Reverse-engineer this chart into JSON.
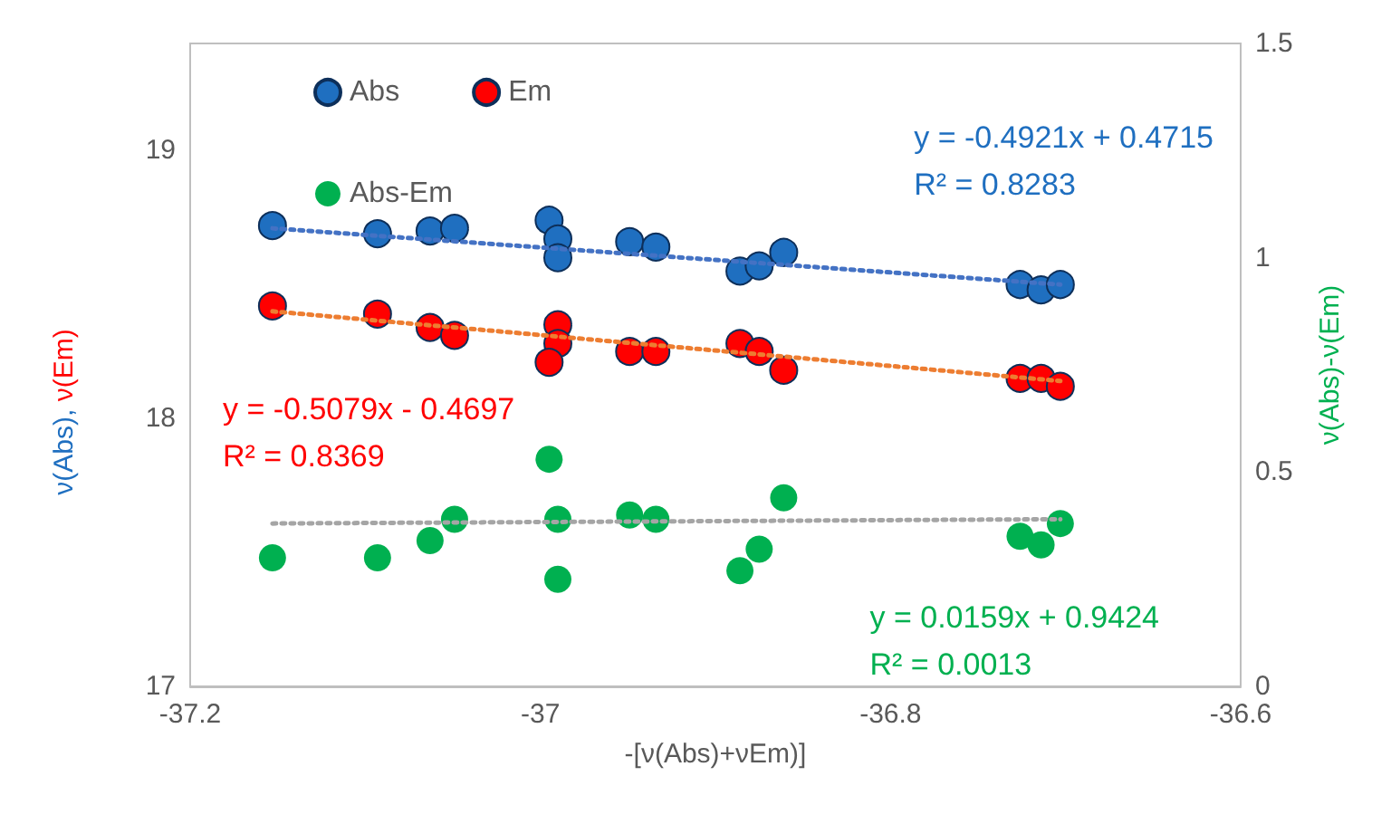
{
  "chart_data": {
    "type": "scatter",
    "xlabel": "-[ν(Abs)+νEm)]",
    "ylabel": "ν(Abs), ν(Em)",
    "y2label": "ν(Abs)-ν(Em)",
    "xlim": [
      -37.2,
      -36.6
    ],
    "xticks": [
      -37.2,
      -37,
      -36.8,
      -36.6
    ],
    "ylim": [
      17,
      19.4
    ],
    "yticks": [
      17,
      18,
      19
    ],
    "y2lim": [
      0,
      1.5
    ],
    "y2ticks": [
      0,
      0.5,
      1,
      1.5
    ],
    "grid": false,
    "legend": "top left",
    "marker": "circle",
    "series": [
      {
        "name": "Abs",
        "color": "#1f6fc0",
        "x": [
          -37.153,
          -37.093,
          -37.063,
          -37.049,
          -36.995,
          -36.99,
          -36.99,
          -36.949,
          -36.934,
          -36.886,
          -36.875,
          -36.861,
          -36.726,
          -36.714,
          -36.703
        ],
        "values": [
          18.72,
          18.69,
          18.7,
          18.71,
          18.74,
          18.67,
          18.6,
          18.66,
          18.64,
          18.55,
          18.57,
          18.62,
          18.5,
          18.48,
          18.5
        ]
      },
      {
        "name": "Em",
        "color": "#ff0000",
        "x": [
          -37.153,
          -37.093,
          -37.063,
          -37.049,
          -36.99,
          -36.99,
          -36.995,
          -36.949,
          -36.934,
          -36.886,
          -36.875,
          -36.861,
          -36.726,
          -36.714,
          -36.703
        ],
        "values": [
          18.42,
          18.39,
          18.34,
          18.31,
          18.35,
          18.28,
          18.21,
          18.25,
          18.25,
          18.28,
          18.25,
          18.18,
          18.15,
          18.15,
          18.12
        ]
      },
      {
        "name": "Abs-Em",
        "color": "#00b050",
        "axis": "y2",
        "x": [
          -37.153,
          -37.093,
          -37.063,
          -37.049,
          -36.995,
          -36.99,
          -36.99,
          -36.949,
          -36.934,
          -36.886,
          -36.875,
          -36.861,
          -36.726,
          -36.714,
          -36.703
        ],
        "values": [
          0.3,
          0.3,
          0.34,
          0.39,
          0.53,
          0.39,
          0.25,
          0.4,
          0.39,
          0.27,
          0.32,
          0.44,
          0.35,
          0.33,
          0.38
        ]
      },
      {
        "type": "line",
        "color": "#4472c4",
        "line_style": "dotted",
        "marker": "none",
        "x": [
          -37.153,
          -36.703
        ],
        "values": [
          18.71,
          18.5
        ]
      },
      {
        "type": "line",
        "color": "#ed7d31",
        "line_style": "dotted",
        "marker": "none",
        "x": [
          -37.153,
          -36.703
        ],
        "values": [
          18.4,
          18.14
        ]
      },
      {
        "type": "line",
        "color": "#a5a5a5",
        "line_style": "dotted",
        "marker": "none",
        "axis": "y2",
        "x": [
          -37.153,
          -36.703
        ],
        "values": [
          0.38,
          0.39
        ]
      }
    ],
    "annotations": [
      "y = -0.4921x + 0.4715\nR² = 0.8283",
      "y = -0.5079x - 0.4697\nR² = 0.8369",
      "y = 0.0159x + 0.9424\nR² = 0.0013"
    ]
  }
}
